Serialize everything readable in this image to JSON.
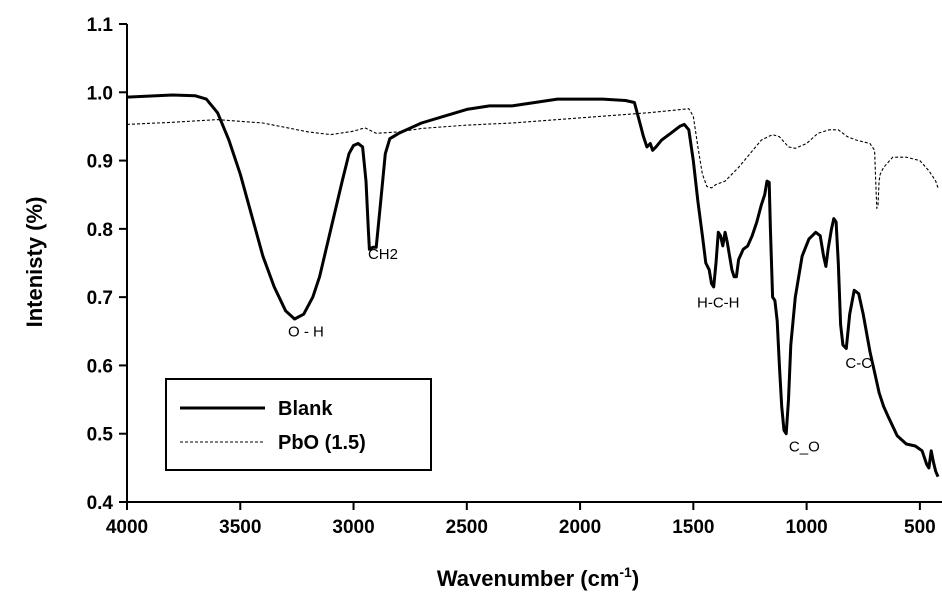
{
  "chart_data": {
    "type": "line",
    "title": "",
    "xlabel": "Wavenumber (cm",
    "xlabel_sup": "-1",
    "xlabel_end": ")",
    "ylabel": "Intenisty (%)",
    "xlim": [
      4000,
      420
    ],
    "ylim": [
      0.4,
      1.1
    ],
    "x_reversed": true,
    "grid": false,
    "legend_position": "bottom-left",
    "x_ticks": [
      4000,
      3500,
      3000,
      2500,
      2000,
      1500,
      1000,
      500
    ],
    "y_ticks": [
      "0.4",
      "0.5",
      "0.6",
      "0.7",
      "0.8",
      "0.9",
      "1.0",
      "1.1"
    ],
    "series": [
      {
        "name": "Blank",
        "style": "solid",
        "color": "#000000",
        "points": [
          [
            4000,
            0.993
          ],
          [
            3800,
            0.996
          ],
          [
            3700,
            0.995
          ],
          [
            3650,
            0.99
          ],
          [
            3600,
            0.97
          ],
          [
            3550,
            0.93
          ],
          [
            3500,
            0.88
          ],
          [
            3450,
            0.82
          ],
          [
            3400,
            0.76
          ],
          [
            3350,
            0.715
          ],
          [
            3300,
            0.68
          ],
          [
            3260,
            0.668
          ],
          [
            3220,
            0.675
          ],
          [
            3180,
            0.7
          ],
          [
            3150,
            0.73
          ],
          [
            3100,
            0.8
          ],
          [
            3050,
            0.87
          ],
          [
            3020,
            0.91
          ],
          [
            3000,
            0.922
          ],
          [
            2980,
            0.925
          ],
          [
            2960,
            0.92
          ],
          [
            2945,
            0.87
          ],
          [
            2935,
            0.8
          ],
          [
            2930,
            0.77
          ],
          [
            2915,
            0.773
          ],
          [
            2900,
            0.773
          ],
          [
            2880,
            0.84
          ],
          [
            2860,
            0.91
          ],
          [
            2840,
            0.932
          ],
          [
            2800,
            0.94
          ],
          [
            2700,
            0.955
          ],
          [
            2600,
            0.965
          ],
          [
            2500,
            0.975
          ],
          [
            2400,
            0.98
          ],
          [
            2300,
            0.98
          ],
          [
            2200,
            0.985
          ],
          [
            2100,
            0.99
          ],
          [
            2000,
            0.99
          ],
          [
            1900,
            0.99
          ],
          [
            1800,
            0.988
          ],
          [
            1760,
            0.985
          ],
          [
            1740,
            0.96
          ],
          [
            1720,
            0.935
          ],
          [
            1705,
            0.92
          ],
          [
            1690,
            0.925
          ],
          [
            1680,
            0.915
          ],
          [
            1665,
            0.92
          ],
          [
            1640,
            0.93
          ],
          [
            1600,
            0.94
          ],
          [
            1560,
            0.95
          ],
          [
            1540,
            0.953
          ],
          [
            1520,
            0.945
          ],
          [
            1500,
            0.9
          ],
          [
            1480,
            0.84
          ],
          [
            1460,
            0.79
          ],
          [
            1445,
            0.75
          ],
          [
            1430,
            0.74
          ],
          [
            1420,
            0.72
          ],
          [
            1410,
            0.715
          ],
          [
            1400,
            0.75
          ],
          [
            1390,
            0.795
          ],
          [
            1380,
            0.79
          ],
          [
            1370,
            0.775
          ],
          [
            1360,
            0.795
          ],
          [
            1350,
            0.78
          ],
          [
            1330,
            0.74
          ],
          [
            1320,
            0.73
          ],
          [
            1310,
            0.73
          ],
          [
            1300,
            0.755
          ],
          [
            1280,
            0.77
          ],
          [
            1260,
            0.775
          ],
          [
            1240,
            0.79
          ],
          [
            1220,
            0.81
          ],
          [
            1200,
            0.835
          ],
          [
            1185,
            0.85
          ],
          [
            1175,
            0.87
          ],
          [
            1165,
            0.868
          ],
          [
            1160,
            0.8
          ],
          [
            1150,
            0.7
          ],
          [
            1140,
            0.695
          ],
          [
            1130,
            0.665
          ],
          [
            1120,
            0.6
          ],
          [
            1110,
            0.54
          ],
          [
            1100,
            0.505
          ],
          [
            1090,
            0.5
          ],
          [
            1080,
            0.55
          ],
          [
            1070,
            0.63
          ],
          [
            1050,
            0.7
          ],
          [
            1020,
            0.76
          ],
          [
            990,
            0.785
          ],
          [
            960,
            0.795
          ],
          [
            940,
            0.79
          ],
          [
            925,
            0.76
          ],
          [
            915,
            0.745
          ],
          [
            905,
            0.77
          ],
          [
            890,
            0.8
          ],
          [
            880,
            0.815
          ],
          [
            870,
            0.81
          ],
          [
            860,
            0.75
          ],
          [
            850,
            0.66
          ],
          [
            840,
            0.63
          ],
          [
            825,
            0.625
          ],
          [
            810,
            0.675
          ],
          [
            790,
            0.71
          ],
          [
            770,
            0.705
          ],
          [
            750,
            0.675
          ],
          [
            720,
            0.62
          ],
          [
            700,
            0.59
          ],
          [
            680,
            0.56
          ],
          [
            660,
            0.54
          ],
          [
            640,
            0.525
          ],
          [
            600,
            0.497
          ],
          [
            560,
            0.485
          ],
          [
            520,
            0.482
          ],
          [
            490,
            0.475
          ],
          [
            470,
            0.455
          ],
          [
            460,
            0.45
          ],
          [
            450,
            0.475
          ],
          [
            440,
            0.458
          ],
          [
            430,
            0.445
          ],
          [
            420,
            0.437
          ]
        ]
      },
      {
        "name": "PbO (1.5)",
        "style": "dashed",
        "color": "#000000",
        "points": [
          [
            4000,
            0.953
          ],
          [
            3800,
            0.956
          ],
          [
            3600,
            0.96
          ],
          [
            3400,
            0.955
          ],
          [
            3200,
            0.942
          ],
          [
            3100,
            0.938
          ],
          [
            3000,
            0.943
          ],
          [
            2950,
            0.948
          ],
          [
            2900,
            0.94
          ],
          [
            2800,
            0.942
          ],
          [
            2700,
            0.947
          ],
          [
            2500,
            0.952
          ],
          [
            2300,
            0.955
          ],
          [
            2100,
            0.96
          ],
          [
            1900,
            0.965
          ],
          [
            1700,
            0.97
          ],
          [
            1550,
            0.975
          ],
          [
            1520,
            0.976
          ],
          [
            1500,
            0.965
          ],
          [
            1480,
            0.92
          ],
          [
            1460,
            0.88
          ],
          [
            1440,
            0.862
          ],
          [
            1420,
            0.86
          ],
          [
            1400,
            0.865
          ],
          [
            1360,
            0.87
          ],
          [
            1300,
            0.89
          ],
          [
            1250,
            0.91
          ],
          [
            1200,
            0.93
          ],
          [
            1150,
            0.938
          ],
          [
            1120,
            0.935
          ],
          [
            1080,
            0.92
          ],
          [
            1050,
            0.918
          ],
          [
            1000,
            0.925
          ],
          [
            950,
            0.94
          ],
          [
            900,
            0.945
          ],
          [
            860,
            0.945
          ],
          [
            820,
            0.935
          ],
          [
            780,
            0.93
          ],
          [
            720,
            0.925
          ],
          [
            700,
            0.915
          ],
          [
            695,
            0.87
          ],
          [
            690,
            0.83
          ],
          [
            685,
            0.835
          ],
          [
            680,
            0.87
          ],
          [
            675,
            0.88
          ],
          [
            660,
            0.89
          ],
          [
            620,
            0.905
          ],
          [
            560,
            0.905
          ],
          [
            500,
            0.9
          ],
          [
            460,
            0.885
          ],
          [
            440,
            0.875
          ],
          [
            430,
            0.87
          ],
          [
            420,
            0.86
          ]
        ]
      }
    ],
    "annotations": [
      {
        "text": "O - H",
        "x": 3210,
        "y": 0.642
      },
      {
        "text": "CH2",
        "x": 2870,
        "y": 0.756
      },
      {
        "text": "H-C-H",
        "x": 1390,
        "y": 0.685
      },
      {
        "text": "C_O",
        "x": 1010,
        "y": 0.474
      },
      {
        "text": "C-C",
        "x": 770,
        "y": 0.596
      }
    ]
  }
}
